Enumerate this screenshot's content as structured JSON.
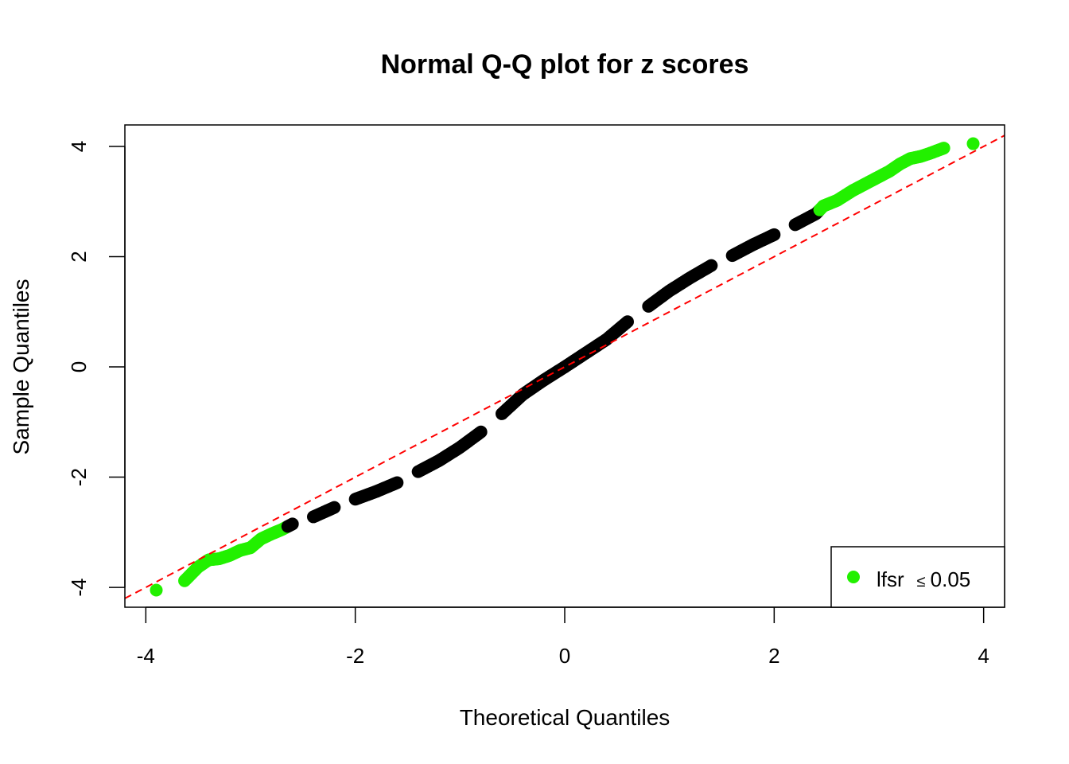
{
  "chart_data": {
    "type": "scatter",
    "title": "Normal Q-Q plot for z scores",
    "xlabel": "Theoretical Quantiles",
    "ylabel": "Sample Quantiles",
    "xlim": [
      -4.2,
      4.2
    ],
    "ylim": [
      -4.36,
      4.39
    ],
    "xticks": [
      -4,
      -2,
      0,
      2,
      4
    ],
    "yticks": [
      -4,
      -2,
      0,
      2,
      4
    ],
    "xtick_labels": [
      "-4",
      "-2",
      "0",
      "2",
      "4"
    ],
    "ytick_labels": [
      "-4",
      "-2",
      "0",
      "2",
      "4"
    ],
    "grid": false,
    "colors": {
      "significant": "#22f000",
      "other": "#000000",
      "reference_line": "#ff0000"
    },
    "reference_line": {
      "style": "dashed",
      "intercept": 0,
      "slope": 1
    },
    "legend": {
      "position": "bottom-right",
      "label": "lfsr",
      "symbol": "≤",
      "value": "0.05"
    },
    "points": [
      [
        -3.9,
        -4.05,
        true
      ],
      [
        -3.63,
        -3.88,
        true
      ],
      [
        -3.5,
        -3.63,
        true
      ],
      [
        -3.4,
        -3.5,
        true
      ],
      [
        -3.3,
        -3.48,
        true
      ],
      [
        -3.2,
        -3.42,
        true
      ],
      [
        -3.1,
        -3.33,
        true
      ],
      [
        -3.0,
        -3.28,
        true
      ],
      [
        -2.9,
        -3.12,
        true
      ],
      [
        -2.8,
        -3.03,
        true
      ],
      [
        -2.7,
        -2.95,
        true
      ],
      [
        -2.6,
        -2.85,
        false
      ],
      [
        -2.4,
        -2.72,
        false
      ],
      [
        -2.2,
        -2.55,
        false
      ],
      [
        -2.0,
        -2.4,
        false
      ],
      [
        -1.8,
        -2.26,
        false
      ],
      [
        -1.6,
        -2.1,
        false
      ],
      [
        -1.4,
        -1.9,
        false
      ],
      [
        -1.2,
        -1.7,
        false
      ],
      [
        -1.0,
        -1.46,
        false
      ],
      [
        -0.8,
        -1.18,
        false
      ],
      [
        -0.6,
        -0.85,
        false
      ],
      [
        -0.4,
        -0.5,
        false
      ],
      [
        -0.2,
        -0.24,
        false
      ],
      [
        0.0,
        0.0,
        false
      ],
      [
        0.2,
        0.25,
        false
      ],
      [
        0.4,
        0.5,
        false
      ],
      [
        0.6,
        0.82,
        false
      ],
      [
        0.8,
        1.1,
        false
      ],
      [
        1.0,
        1.38,
        false
      ],
      [
        1.2,
        1.62,
        false
      ],
      [
        1.4,
        1.84,
        false
      ],
      [
        1.6,
        2.02,
        false
      ],
      [
        1.8,
        2.22,
        false
      ],
      [
        2.0,
        2.4,
        false
      ],
      [
        2.2,
        2.58,
        false
      ],
      [
        2.4,
        2.78,
        false
      ],
      [
        2.47,
        2.92,
        true
      ],
      [
        2.6,
        3.02,
        true
      ],
      [
        2.75,
        3.2,
        true
      ],
      [
        2.9,
        3.35,
        true
      ],
      [
        3.0,
        3.45,
        true
      ],
      [
        3.1,
        3.55,
        true
      ],
      [
        3.2,
        3.68,
        true
      ],
      [
        3.3,
        3.78,
        true
      ],
      [
        3.4,
        3.82,
        true
      ],
      [
        3.48,
        3.87,
        true
      ],
      [
        3.62,
        3.97,
        true
      ],
      [
        3.9,
        4.05,
        true
      ]
    ]
  }
}
